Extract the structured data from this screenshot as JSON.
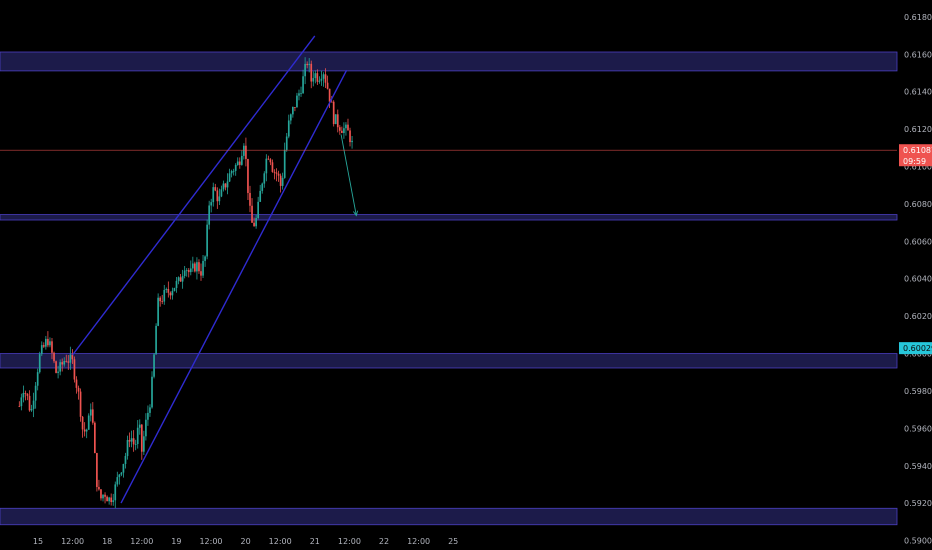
{
  "chart_data": {
    "type": "candlestick",
    "title": "",
    "xlabel": "",
    "ylabel": "",
    "ylim": [
      0.5895,
      0.6189
    ],
    "yticks": [
      "0.59000",
      "0.59200",
      "0.59400",
      "0.59600",
      "0.59800",
      "0.60000",
      "0.60200",
      "0.60400",
      "0.60600",
      "0.60800",
      "0.61000",
      "0.61200",
      "0.61400",
      "0.61600",
      "0.61800"
    ],
    "xticks": [
      {
        "label": "15",
        "t": 0.0
      },
      {
        "label": "12:00",
        "t": 0.5
      },
      {
        "label": "18",
        "t": 1.0
      },
      {
        "label": "12:00",
        "t": 1.5
      },
      {
        "label": "19",
        "t": 2.0
      },
      {
        "label": "12:00",
        "t": 2.5
      },
      {
        "label": "20",
        "t": 3.0
      },
      {
        "label": "12:00",
        "t": 3.5
      },
      {
        "label": "21",
        "t": 4.0
      },
      {
        "label": "12:00",
        "t": 4.5
      },
      {
        "label": "22",
        "t": 5.0
      },
      {
        "label": "12:00",
        "t": 5.5
      },
      {
        "label": "25",
        "t": 6.0
      }
    ],
    "price_path": [
      [
        -0.27,
        0.5972
      ],
      [
        -0.22,
        0.5983
      ],
      [
        -0.15,
        0.5976
      ],
      [
        -0.1,
        0.5968
      ],
      [
        -0.05,
        0.5982
      ],
      [
        0.02,
        0.5998
      ],
      [
        0.08,
        0.6003
      ],
      [
        0.14,
        0.6008
      ],
      [
        0.2,
        0.6
      ],
      [
        0.26,
        0.599
      ],
      [
        0.32,
        0.5992
      ],
      [
        0.4,
        0.5998
      ],
      [
        0.5,
        0.5995
      ],
      [
        0.55,
        0.5985
      ],
      [
        0.6,
        0.5975
      ],
      [
        0.65,
        0.5958
      ],
      [
        0.72,
        0.596
      ],
      [
        0.77,
        0.5975
      ],
      [
        0.82,
        0.5945
      ],
      [
        0.86,
        0.5928
      ],
      [
        0.9,
        0.5922
      ],
      [
        0.96,
        0.5926
      ],
      [
        1.03,
        0.5922
      ],
      [
        1.1,
        0.5926
      ],
      [
        1.18,
        0.5937
      ],
      [
        1.26,
        0.5945
      ],
      [
        1.33,
        0.5957
      ],
      [
        1.4,
        0.595
      ],
      [
        1.46,
        0.5962
      ],
      [
        1.5,
        0.5948
      ],
      [
        1.56,
        0.5963
      ],
      [
        1.62,
        0.5975
      ],
      [
        1.66,
        0.5988
      ],
      [
        1.7,
        0.6012
      ],
      [
        1.74,
        0.6028
      ],
      [
        1.8,
        0.603
      ],
      [
        1.88,
        0.6033
      ],
      [
        1.96,
        0.6036
      ],
      [
        2.04,
        0.6038
      ],
      [
        2.12,
        0.6048
      ],
      [
        2.2,
        0.6042
      ],
      [
        2.28,
        0.6048
      ],
      [
        2.36,
        0.6044
      ],
      [
        2.42,
        0.6052
      ],
      [
        2.47,
        0.608
      ],
      [
        2.54,
        0.6088
      ],
      [
        2.62,
        0.6082
      ],
      [
        2.7,
        0.609
      ],
      [
        2.8,
        0.6098
      ],
      [
        2.9,
        0.6102
      ],
      [
        2.98,
        0.6115
      ],
      [
        3.02,
        0.6095
      ],
      [
        3.06,
        0.6076
      ],
      [
        3.1,
        0.6068
      ],
      [
        3.16,
        0.6072
      ],
      [
        3.22,
        0.6088
      ],
      [
        3.28,
        0.6102
      ],
      [
        3.34,
        0.6108
      ],
      [
        3.4,
        0.6098
      ],
      [
        3.46,
        0.6096
      ],
      [
        3.52,
        0.6088
      ],
      [
        3.56,
        0.6108
      ],
      [
        3.62,
        0.6122
      ],
      [
        3.7,
        0.6132
      ],
      [
        3.78,
        0.614
      ],
      [
        3.84,
        0.6148
      ],
      [
        3.9,
        0.6158
      ],
      [
        3.94,
        0.6145
      ],
      [
        3.98,
        0.615
      ],
      [
        4.05,
        0.6148
      ],
      [
        4.12,
        0.6152
      ],
      [
        4.2,
        0.614
      ],
      [
        4.28,
        0.6125
      ],
      [
        4.36,
        0.6122
      ],
      [
        4.42,
        0.612
      ],
      [
        4.48,
        0.6118
      ],
      [
        4.52,
        0.6115
      ],
      [
        4.56,
        0.6108
      ]
    ],
    "zones": [
      {
        "name": "resistance",
        "y_top": 0.61612,
        "y_bottom": 0.61511
      },
      {
        "name": "support",
        "y_top": 0.60743,
        "y_bottom": 0.60714
      },
      {
        "name": "support",
        "y_top": 0.6,
        "y_bottom": 0.59923
      },
      {
        "name": "support",
        "y_top": 0.59173,
        "y_bottom": 0.59085
      }
    ],
    "trendlines": [
      {
        "name": "channel-upper",
        "t1": 0.5,
        "v1": 0.59993,
        "t2": 4.0,
        "v2": 0.61698
      },
      {
        "name": "channel-lower",
        "t1": 1.2,
        "v1": 0.59201,
        "t2": 4.46,
        "v2": 0.61515
      }
    ],
    "projection_arrow": {
      "t1": 4.38,
      "v1": 0.61171,
      "t2": 4.6,
      "v2": 0.60738
    },
    "current_price": {
      "value": 0.61087,
      "label": "0.61087",
      "countdown": "09:59"
    },
    "highlight_price": {
      "value": 0.60029,
      "label": "0.60029"
    },
    "colors": {
      "background": "#000000",
      "up": "#26a69a",
      "down": "#ef5350",
      "zone_fill": "#1c1b4a",
      "zone_edge": "#4b3fc2",
      "trendline": "#2f2bd1",
      "arrow": "#26a69a",
      "axis_text": "#b2b5be",
      "price_line": "#ef5350",
      "highlight_badge": "#26c6da"
    }
  }
}
